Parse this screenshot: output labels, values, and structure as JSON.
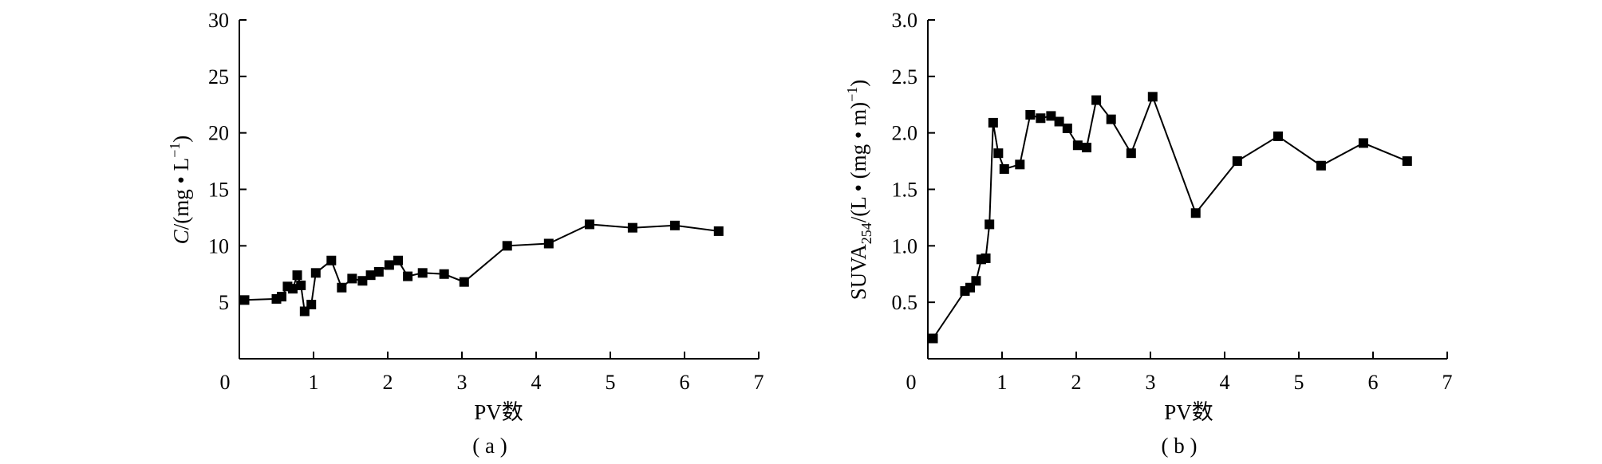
{
  "chart_data": [
    {
      "type": "line",
      "panel_label": "( a )",
      "xlabel": "PV数",
      "ylabel": {
        "italic": "C",
        "rest": "/(mg • L",
        "sup": "−1",
        "close": ")"
      },
      "xlim": [
        0,
        7
      ],
      "ylim": [
        0,
        30
      ],
      "x_ticks": [
        "0",
        "1",
        "2",
        "3",
        "4",
        "5",
        "6",
        "7"
      ],
      "y_ticks": [
        "5",
        "10",
        "15",
        "20",
        "25",
        "30"
      ],
      "marker": "square",
      "series": [
        {
          "x": [
            0.07,
            0.5,
            0.57,
            0.65,
            0.72,
            0.78,
            0.83,
            0.88,
            0.97,
            1.03,
            1.24,
            1.38,
            1.52,
            1.66,
            1.77,
            1.88,
            2.02,
            2.14,
            2.27,
            2.47,
            2.76,
            3.03,
            3.61,
            4.17,
            4.72,
            5.3,
            5.87,
            6.46
          ],
          "y": [
            5.2,
            5.3,
            5.5,
            6.4,
            6.2,
            7.4,
            6.5,
            4.2,
            4.8,
            7.6,
            8.7,
            6.3,
            7.1,
            6.9,
            7.4,
            7.7,
            8.3,
            8.7,
            7.3,
            7.6,
            7.5,
            6.8,
            10.0,
            10.2,
            11.9,
            11.6,
            11.8,
            11.3
          ]
        }
      ]
    },
    {
      "type": "line",
      "panel_label": "( b )",
      "xlabel": "PV数",
      "ylabel": {
        "prefix": "SUVA",
        "sub": "254",
        "rest": "/(L • (mg • m)",
        "sup": "−1",
        "close": ")"
      },
      "xlim": [
        0,
        7
      ],
      "ylim": [
        0,
        3.0
      ],
      "x_ticks": [
        "0",
        "1",
        "2",
        "3",
        "4",
        "5",
        "6",
        "7"
      ],
      "y_ticks": [
        "0.5",
        "1.0",
        "1.5",
        "2.0",
        "2.5",
        "3.0"
      ],
      "marker": "square",
      "series": [
        {
          "x": [
            0.07,
            0.5,
            0.57,
            0.65,
            0.72,
            0.78,
            0.83,
            0.88,
            0.95,
            1.03,
            1.24,
            1.38,
            1.52,
            1.66,
            1.77,
            1.88,
            2.02,
            2.14,
            2.27,
            2.47,
            2.74,
            3.03,
            3.61,
            4.17,
            4.72,
            5.3,
            5.87,
            6.46
          ],
          "y": [
            0.18,
            0.6,
            0.63,
            0.69,
            0.88,
            0.89,
            1.19,
            2.09,
            1.82,
            1.68,
            1.72,
            2.16,
            2.13,
            2.15,
            2.1,
            2.04,
            1.89,
            1.87,
            2.29,
            2.12,
            1.82,
            2.32,
            1.29,
            1.75,
            1.97,
            1.71,
            1.91,
            1.75
          ]
        }
      ]
    }
  ]
}
